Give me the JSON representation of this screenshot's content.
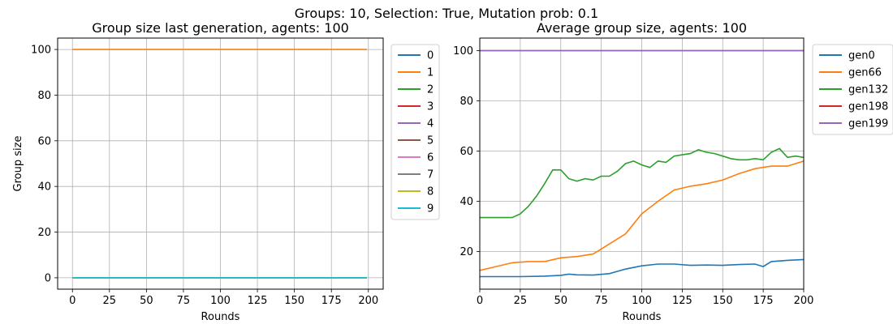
{
  "suptitle": "Groups: 10, Selection: True, Mutation prob: 0.1",
  "chart_data": [
    {
      "type": "line",
      "title": "Group size last generation, agents: 100",
      "xlabel": "Rounds",
      "ylabel": "Group size",
      "xlim": [
        -10,
        210
      ],
      "ylim": [
        -5,
        105
      ],
      "xticks": [
        0,
        25,
        50,
        75,
        100,
        125,
        150,
        175,
        200
      ],
      "yticks": [
        0,
        20,
        40,
        60,
        80,
        100
      ],
      "grid": true,
      "legend_position": "outside-right-top",
      "series": [
        {
          "name": "0",
          "color": "#1f77b4",
          "x": [
            0,
            199
          ],
          "y": [
            0,
            0
          ]
        },
        {
          "name": "1",
          "color": "#ff7f0e",
          "x": [
            0,
            199
          ],
          "y": [
            100,
            100
          ]
        },
        {
          "name": "2",
          "color": "#2ca02c",
          "x": [
            0,
            199
          ],
          "y": [
            0,
            0
          ]
        },
        {
          "name": "3",
          "color": "#d62728",
          "x": [
            0,
            199
          ],
          "y": [
            0,
            0
          ]
        },
        {
          "name": "4",
          "color": "#9467bd",
          "x": [
            0,
            199
          ],
          "y": [
            0,
            0
          ]
        },
        {
          "name": "5",
          "color": "#8c564b",
          "x": [
            0,
            199
          ],
          "y": [
            0,
            0
          ]
        },
        {
          "name": "6",
          "color": "#e377c2",
          "x": [
            0,
            199
          ],
          "y": [
            0,
            0
          ]
        },
        {
          "name": "7",
          "color": "#7f7f7f",
          "x": [
            0,
            199
          ],
          "y": [
            0,
            0
          ]
        },
        {
          "name": "8",
          "color": "#bcbd22",
          "x": [
            0,
            199
          ],
          "y": [
            0,
            0
          ]
        },
        {
          "name": "9",
          "color": "#17becf",
          "x": [
            0,
            199
          ],
          "y": [
            0,
            0
          ]
        }
      ]
    },
    {
      "type": "line",
      "title": "Average group size, agents: 100",
      "xlabel": "Rounds",
      "ylabel": "",
      "xlim": [
        0,
        200
      ],
      "ylim": [
        5,
        105
      ],
      "xticks": [
        0,
        25,
        50,
        75,
        100,
        125,
        150,
        175,
        200
      ],
      "yticks": [
        20,
        40,
        60,
        80,
        100
      ],
      "grid": true,
      "legend_position": "outside-right-top",
      "series": [
        {
          "name": "gen0",
          "color": "#1f77b4",
          "x": [
            0,
            25,
            40,
            50,
            55,
            60,
            70,
            80,
            90,
            100,
            110,
            120,
            130,
            140,
            150,
            160,
            170,
            175,
            180,
            190,
            200
          ],
          "y": [
            10,
            10,
            10.2,
            10.5,
            11,
            10.7,
            10.6,
            11.2,
            13,
            14.3,
            15,
            15,
            14.5,
            14.6,
            14.5,
            14.8,
            15,
            14,
            16,
            16.5,
            16.8
          ]
        },
        {
          "name": "gen66",
          "color": "#ff7f0e",
          "x": [
            0,
            10,
            20,
            30,
            40,
            50,
            60,
            70,
            75,
            80,
            90,
            100,
            110,
            120,
            130,
            140,
            150,
            160,
            170,
            180,
            190,
            200
          ],
          "y": [
            12.5,
            14,
            15.5,
            16,
            16,
            17.5,
            18,
            19,
            21,
            23,
            27,
            35,
            40,
            44.5,
            46,
            47,
            48.5,
            51,
            53,
            54,
            54,
            56
          ]
        },
        {
          "name": "gen132",
          "color": "#2ca02c",
          "x": [
            0,
            10,
            20,
            25,
            30,
            35,
            40,
            45,
            50,
            55,
            60,
            65,
            70,
            75,
            80,
            85,
            90,
            95,
            100,
            105,
            110,
            115,
            120,
            125,
            130,
            135,
            140,
            145,
            150,
            155,
            160,
            165,
            170,
            175,
            180,
            185,
            190,
            195,
            200
          ],
          "y": [
            33.5,
            33.5,
            33.5,
            35,
            38,
            42,
            47,
            52.5,
            52.5,
            49,
            48,
            49,
            48.5,
            50,
            50,
            52,
            55,
            56,
            54.5,
            53.5,
            56,
            55.5,
            58,
            58.5,
            59,
            60.5,
            59.5,
            59,
            58,
            57,
            56.5,
            56.5,
            57,
            56.5,
            59.5,
            61,
            57.5,
            58,
            57.5
          ]
        },
        {
          "name": "gen198",
          "color": "#d62728",
          "x": [
            0,
            200
          ],
          "y": [
            100,
            100
          ]
        },
        {
          "name": "gen199",
          "color": "#9467bd",
          "x": [
            0,
            200
          ],
          "y": [
            100,
            100
          ]
        }
      ]
    }
  ]
}
